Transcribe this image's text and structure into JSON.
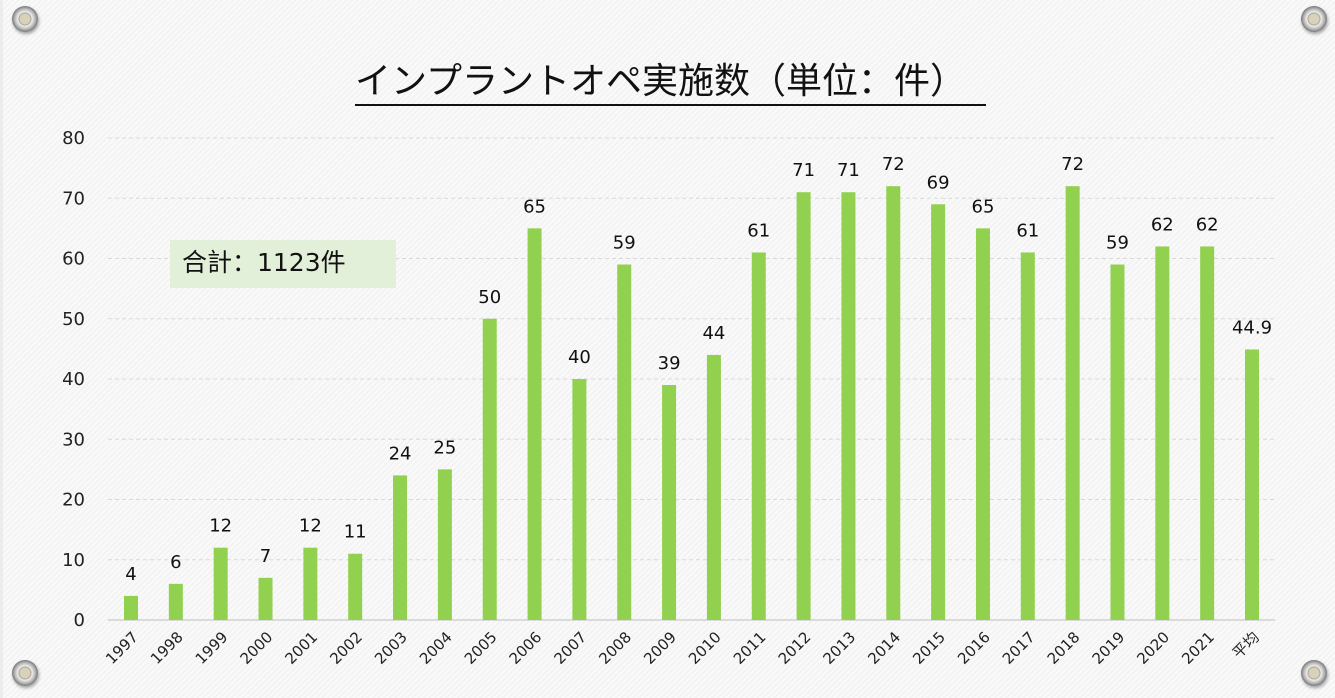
{
  "chart_data": {
    "type": "bar",
    "title": "インプラントオペ実施数（単位：件）",
    "annotation": "合計：1123件",
    "categories": [
      "1997",
      "1998",
      "1999",
      "2000",
      "2001",
      "2002",
      "2003",
      "2004",
      "2005",
      "2006",
      "2007",
      "2008",
      "2009",
      "2010",
      "2011",
      "2012",
      "2013",
      "2014",
      "2015",
      "2016",
      "2017",
      "2018",
      "2019",
      "2020",
      "2021",
      "平均"
    ],
    "values": [
      4,
      6,
      12,
      7,
      12,
      11,
      24,
      25,
      50,
      65,
      40,
      59,
      39,
      44,
      61,
      71,
      71,
      72,
      69,
      65,
      61,
      72,
      59,
      62,
      62,
      44.9
    ],
    "ylim": [
      0,
      80
    ],
    "yticks": [
      0,
      10,
      20,
      30,
      40,
      50,
      60,
      70,
      80
    ],
    "xlabel": "",
    "ylabel": "",
    "grid": true,
    "bar_color": "#92d050"
  }
}
